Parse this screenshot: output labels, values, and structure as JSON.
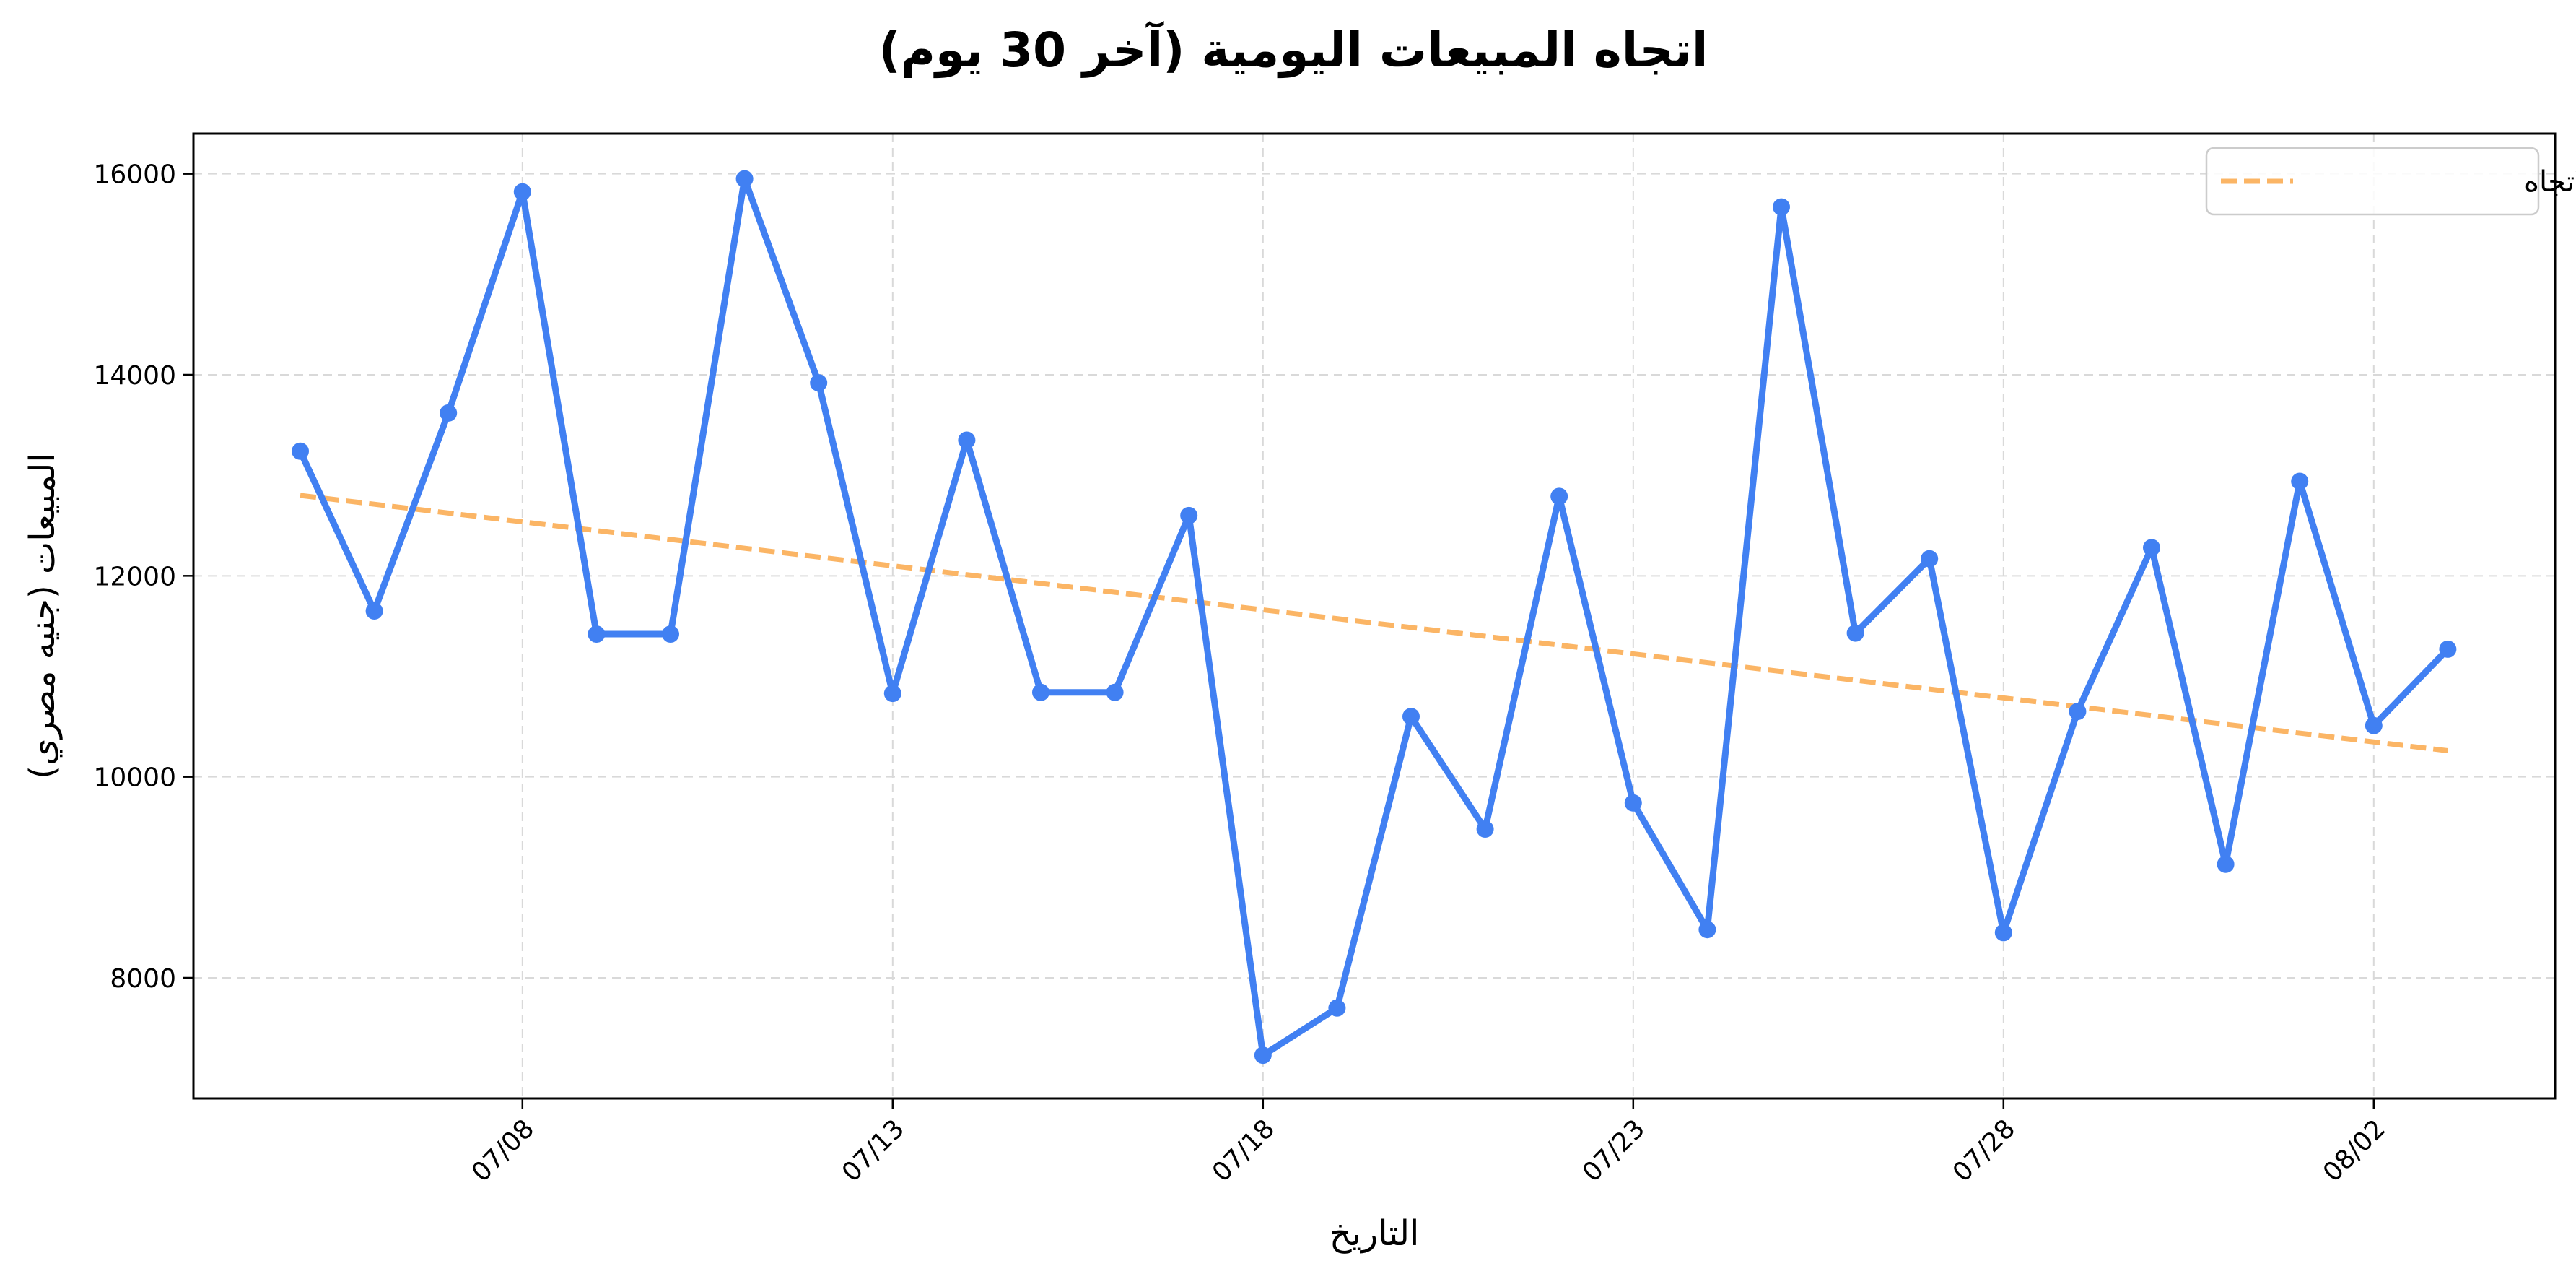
{
  "chart_data": {
    "type": "line",
    "title": "اتجاه المبيعات اليومية (آخر 30 يوم)",
    "xlabel": "التاريخ",
    "ylabel": "المبيعات (جنيه مصري)",
    "x_ticks": [
      "07/08",
      "07/13",
      "07/18",
      "07/23",
      "07/28",
      "08/02"
    ],
    "y_ticks": [
      8000,
      10000,
      12000,
      14000,
      16000
    ],
    "ylim": [
      6800,
      16400
    ],
    "grid": true,
    "legend_position": "top-right",
    "series": [
      {
        "kind": "data",
        "color": "#4180f2",
        "x": [
          "07/05",
          "07/06",
          "07/07",
          "07/08",
          "07/09",
          "07/10",
          "07/11",
          "07/12",
          "07/13",
          "07/14",
          "07/15",
          "07/16",
          "07/17",
          "07/18",
          "07/19",
          "07/20",
          "07/21",
          "07/22",
          "07/23",
          "07/24",
          "07/25",
          "07/26",
          "07/27",
          "07/28",
          "07/29",
          "07/30",
          "07/31",
          "08/01",
          "08/02",
          "08/03"
        ],
        "values": [
          13240,
          11650,
          13620,
          15820,
          11420,
          11420,
          15950,
          13920,
          10830,
          13350,
          10840,
          10840,
          12600,
          7230,
          7700,
          10600,
          9480,
          12790,
          9740,
          8480,
          15670,
          11430,
          12170,
          8450,
          10650,
          12280,
          9130,
          12940,
          10510,
          11270
        ]
      },
      {
        "kind": "trend",
        "name": "خط الاتجاه",
        "color": "#fbb565",
        "x": [
          "07/05",
          "08/03"
        ],
        "values": [
          12800,
          10260
        ]
      }
    ]
  }
}
